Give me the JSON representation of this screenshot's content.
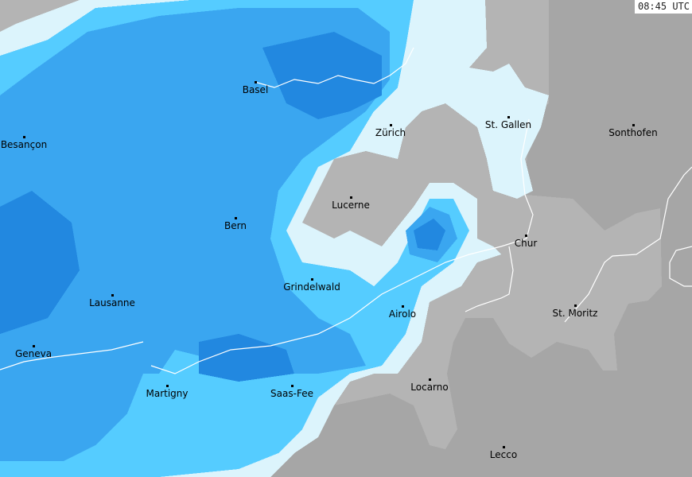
{
  "timestamp": "08:45 UTC",
  "colors": {
    "outside": "#a6a6a6",
    "land": "#b4b4b4",
    "precip_very_light": "#dcf4fc",
    "precip_light": "#55ccff",
    "precip_moderate": "#3aa6f0",
    "precip_heavy": "#2288e0",
    "border": "#ffffff"
  },
  "cities": [
    {
      "name": "Basel",
      "id": "basel"
    },
    {
      "name": "Zürich",
      "id": "zurich"
    },
    {
      "name": "St. Gallen",
      "id": "st-gallen"
    },
    {
      "name": "Sonthofen",
      "id": "sonthofen"
    },
    {
      "name": "Besançon",
      "id": "besancon"
    },
    {
      "name": "Lucerne",
      "id": "lucerne"
    },
    {
      "name": "Bern",
      "id": "bern"
    },
    {
      "name": "Chur",
      "id": "chur"
    },
    {
      "name": "Grindelwald",
      "id": "grindelwald"
    },
    {
      "name": "Lausanne",
      "id": "lausanne"
    },
    {
      "name": "Airolo",
      "id": "airolo"
    },
    {
      "name": "St. Moritz",
      "id": "st-moritz"
    },
    {
      "name": "Geneva",
      "id": "geneva"
    },
    {
      "name": "Martigny",
      "id": "martigny"
    },
    {
      "name": "Saas-Fee",
      "id": "saas-fee"
    },
    {
      "name": "Locarno",
      "id": "locarno"
    },
    {
      "name": "Lecco",
      "id": "lecco"
    }
  ]
}
